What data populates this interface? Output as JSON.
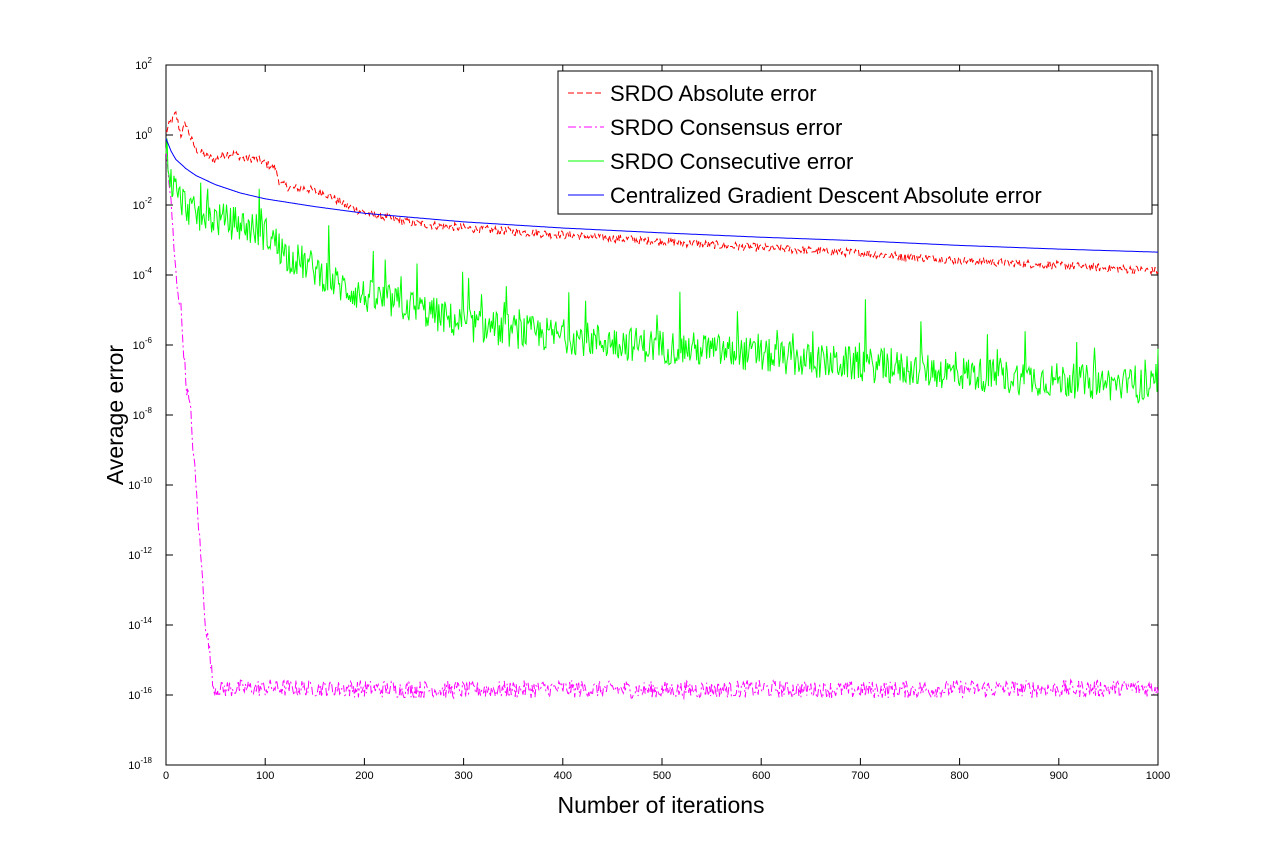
{
  "chart_data": {
    "type": "line",
    "title": "",
    "xlabel": "Number of iterations",
    "ylabel": "Average error",
    "xlim": [
      0,
      1000
    ],
    "ylim_exponent": [
      -18,
      2
    ],
    "yscale": "log",
    "grid": false,
    "legend_position": "top-right",
    "x_ticks": [
      "0",
      "100",
      "200",
      "300",
      "400",
      "500",
      "600",
      "700",
      "800",
      "900",
      "1000"
    ],
    "y_ticks": [
      {
        "base": "10",
        "exp": "2"
      },
      {
        "base": "10",
        "exp": "0"
      },
      {
        "base": "10",
        "exp": "-2"
      },
      {
        "base": "10",
        "exp": "-4"
      },
      {
        "base": "10",
        "exp": "-6"
      },
      {
        "base": "10",
        "exp": "-8"
      },
      {
        "base": "10",
        "exp": "-10"
      },
      {
        "base": "10",
        "exp": "-12"
      },
      {
        "base": "10",
        "exp": "-14"
      },
      {
        "base": "10",
        "exp": "-16"
      },
      {
        "base": "10",
        "exp": "-18"
      }
    ],
    "series": [
      {
        "name": "SRDO Absolute error",
        "color": "#ff0000",
        "dash": "dashed",
        "noise": 0.12,
        "x": [
          0,
          5,
          10,
          15,
          20,
          25,
          30,
          40,
          50,
          60,
          70,
          80,
          90,
          100,
          110,
          115,
          120,
          130,
          140,
          150,
          160,
          170,
          180,
          200,
          220,
          250,
          300,
          400,
          500,
          600,
          700,
          800,
          900,
          1000
        ],
        "y": [
          1.2,
          2.5,
          4.0,
          1.0,
          2.2,
          0.8,
          0.4,
          0.25,
          0.2,
          0.3,
          0.28,
          0.2,
          0.22,
          0.15,
          0.12,
          0.04,
          0.035,
          0.03,
          0.03,
          0.025,
          0.022,
          0.015,
          0.01,
          0.006,
          0.0045,
          0.003,
          0.0022,
          0.0014,
          0.0009,
          0.0006,
          0.00042,
          0.00026,
          0.00019,
          0.00013
        ]
      },
      {
        "name": "SRDO Consensus error",
        "color": "#ff00ff",
        "dash": "dashdot",
        "noise": 0.25,
        "x": [
          0,
          3,
          5,
          10,
          15,
          20,
          25,
          30,
          35,
          40,
          45,
          47,
          50,
          100,
          200,
          300,
          400,
          500,
          600,
          700,
          800,
          900,
          1000
        ],
        "y": [
          0.3,
          0.05,
          0.01,
          0.0001,
          1e-05,
          1e-07,
          1e-08,
          1e-10,
          1e-12,
          1e-14,
          1e-15,
          2e-16,
          1.5e-16,
          1.6e-16,
          1.5e-16,
          1.4e-16,
          1.5e-16,
          1.4e-16,
          1.5e-16,
          1.4e-16,
          1.5e-16,
          1.5e-16,
          1.6e-16
        ]
      },
      {
        "name": "SRDO Consecutive error",
        "color": "#00ff00",
        "dash": "solid",
        "noise": 0.5,
        "spikes": 0.06,
        "x": [
          0,
          5,
          10,
          20,
          30,
          50,
          70,
          90,
          100,
          110,
          120,
          150,
          175,
          200,
          250,
          300,
          350,
          400,
          450,
          500,
          550,
          600,
          650,
          700,
          750,
          800,
          850,
          900,
          950,
          1000
        ],
        "y": [
          0.5,
          0.05,
          0.02,
          0.01,
          0.005,
          0.004,
          0.003,
          0.002,
          0.0015,
          0.0009,
          0.0004,
          0.00015,
          5e-05,
          2.5e-05,
          1.2e-05,
          4e-06,
          2.5e-06,
          1.8e-06,
          1.2e-06,
          9e-07,
          7e-07,
          5e-07,
          3.5e-07,
          2.8e-07,
          2e-07,
          1.6e-07,
          1.2e-07,
          1e-07,
          8e-08,
          6e-08
        ]
      },
      {
        "name": "Centralized Gradient Descent Absolute error",
        "color": "#0000ff",
        "dash": "solid",
        "noise": 0,
        "x": [
          0,
          5,
          10,
          20,
          30,
          50,
          75,
          100,
          150,
          200,
          300,
          400,
          500,
          600,
          700,
          800,
          900,
          1000
        ],
        "y": [
          0.8,
          0.35,
          0.2,
          0.11,
          0.07,
          0.038,
          0.022,
          0.015,
          0.009,
          0.0058,
          0.0033,
          0.0022,
          0.0016,
          0.0012,
          0.00095,
          0.0007,
          0.00055,
          0.00045
        ]
      }
    ]
  }
}
